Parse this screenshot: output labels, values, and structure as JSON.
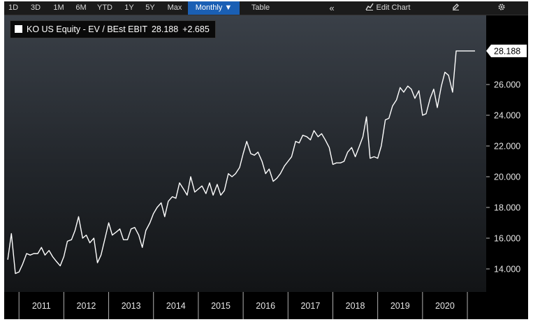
{
  "toolbar": {
    "ranges": [
      "1D",
      "3D",
      "1M",
      "6M",
      "YTD",
      "1Y",
      "5Y",
      "Max"
    ],
    "frequency": "Monthly ▼",
    "table": "Table",
    "collapse": "«",
    "edit_chart": "Edit Chart"
  },
  "legend": {
    "series": "KO US Equity - EV / BEst EBIT",
    "last": "28.188",
    "change": "+2.685"
  },
  "chart_data": {
    "type": "line",
    "title": "",
    "xlabel": "",
    "ylabel": "",
    "ylim": [
      12.5,
      30.5
    ],
    "yticks": [
      "14.000",
      "16.000",
      "18.000",
      "20.000",
      "22.000",
      "24.000",
      "26.000"
    ],
    "years": [
      "2011",
      "2012",
      "2013",
      "2014",
      "2015",
      "2016",
      "2017",
      "2018",
      "2019",
      "2020"
    ],
    "x_start": "2010-11",
    "x_end": "2021-05",
    "last_value_label": "28.188",
    "series": [
      {
        "name": "KO US Equity - EV / BEst EBIT",
        "color": "#ffffff",
        "x": [
          2010.75,
          2010.83,
          2010.92,
          2011.0,
          2011.08,
          2011.17,
          2011.25,
          2011.33,
          2011.42,
          2011.5,
          2011.58,
          2011.67,
          2011.75,
          2011.83,
          2011.92,
          2012.0,
          2012.08,
          2012.17,
          2012.25,
          2012.33,
          2012.42,
          2012.5,
          2012.58,
          2012.67,
          2012.75,
          2012.83,
          2012.92,
          2013.0,
          2013.08,
          2013.17,
          2013.25,
          2013.33,
          2013.42,
          2013.5,
          2013.58,
          2013.67,
          2013.75,
          2013.83,
          2013.92,
          2014.0,
          2014.08,
          2014.17,
          2014.25,
          2014.33,
          2014.42,
          2014.5,
          2014.58,
          2014.67,
          2014.75,
          2014.83,
          2014.92,
          2015.0,
          2015.08,
          2015.17,
          2015.25,
          2015.33,
          2015.42,
          2015.5,
          2015.58,
          2015.67,
          2015.75,
          2015.83,
          2015.92,
          2016.0,
          2016.08,
          2016.17,
          2016.25,
          2016.33,
          2016.42,
          2016.5,
          2016.58,
          2016.67,
          2016.75,
          2016.83,
          2016.92,
          2017.0,
          2017.08,
          2017.17,
          2017.25,
          2017.33,
          2017.42,
          2017.5,
          2017.58,
          2017.67,
          2017.75,
          2017.83,
          2017.92,
          2018.0,
          2018.08,
          2018.17,
          2018.25,
          2018.33,
          2018.42,
          2018.5,
          2018.58,
          2018.67,
          2018.75,
          2018.83,
          2018.92,
          2019.0,
          2019.08,
          2019.17,
          2019.25,
          2019.33,
          2019.42,
          2019.5,
          2019.58,
          2019.67,
          2019.75,
          2019.83,
          2019.92,
          2020.0,
          2020.08,
          2020.17,
          2020.25,
          2020.33,
          2020.42,
          2020.5,
          2020.58,
          2020.67,
          2020.75,
          2020.83,
          2020.92,
          2021.0,
          2021.08,
          2021.17
        ],
        "values": [
          14.6,
          16.3,
          13.7,
          13.8,
          14.3,
          15.0,
          14.9,
          15.0,
          15.0,
          15.4,
          14.9,
          15.2,
          14.8,
          14.5,
          14.2,
          14.8,
          15.8,
          15.9,
          16.5,
          17.4,
          16.0,
          16.2,
          15.7,
          16.0,
          14.4,
          14.9,
          16.0,
          17.0,
          16.2,
          16.4,
          16.6,
          15.9,
          15.9,
          16.6,
          16.7,
          16.2,
          15.4,
          16.5,
          17.0,
          17.6,
          18.0,
          18.3,
          17.4,
          18.4,
          18.7,
          18.6,
          19.6,
          19.2,
          18.8,
          20.0,
          19.0,
          19.2,
          19.4,
          18.9,
          19.6,
          18.8,
          19.5,
          18.8,
          19.1,
          20.2,
          20.0,
          20.2,
          20.6,
          21.5,
          22.3,
          21.5,
          21.4,
          21.6,
          21.0,
          20.2,
          20.5,
          19.7,
          19.9,
          20.2,
          20.7,
          21.0,
          21.3,
          22.3,
          22.2,
          22.7,
          22.6,
          22.4,
          23.0,
          22.6,
          22.8,
          22.4,
          21.9,
          20.8,
          20.9,
          20.9,
          21.0,
          21.6,
          21.9,
          21.3,
          21.9,
          22.6,
          23.9,
          21.2,
          21.3,
          21.2,
          22.0,
          23.7,
          23.8,
          24.6,
          25.0,
          25.8,
          25.5,
          25.9,
          25.7,
          25.1,
          25.6,
          24.0,
          24.1,
          25.1,
          25.7,
          24.5,
          25.9,
          26.8,
          26.6,
          25.5,
          28.188,
          28.188,
          28.188,
          28.188,
          28.188,
          28.188
        ]
      }
    ]
  }
}
